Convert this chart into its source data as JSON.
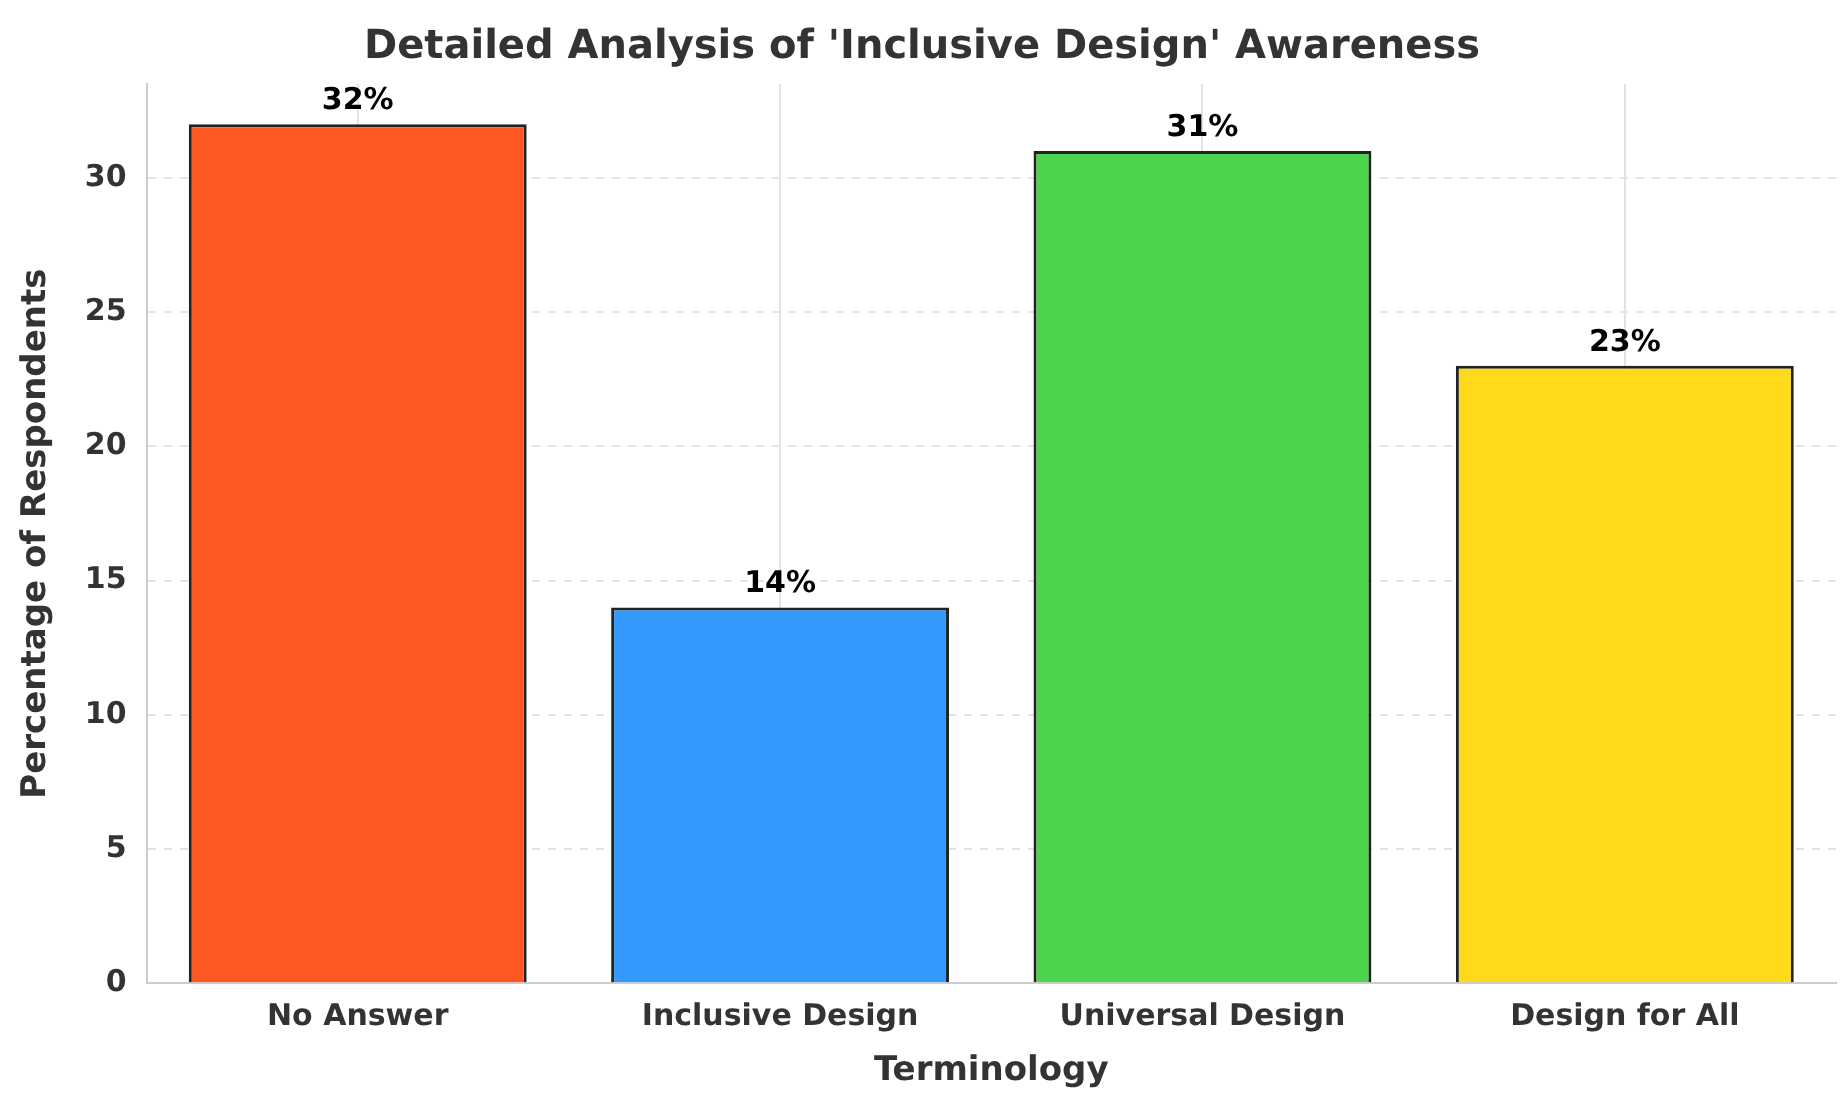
{
  "chart_data": {
    "type": "bar",
    "title": "Detailed Analysis of 'Inclusive Design' Awareness",
    "xlabel": "Terminology",
    "ylabel": "Percentage of Respondents",
    "categories": [
      "No Answer",
      "Inclusive Design",
      "Universal Design",
      "Design for All"
    ],
    "values": [
      32,
      14,
      31,
      23
    ],
    "colors": [
      "#ff5722",
      "#3399ff",
      "#4cd44c",
      "#ffd91a"
    ],
    "value_labels": [
      "32%",
      "14%",
      "31%",
      "23%"
    ],
    "ylim": [
      0,
      33.5
    ],
    "yticks": [
      0,
      5,
      10,
      15,
      20,
      25,
      30
    ],
    "grid": true
  }
}
